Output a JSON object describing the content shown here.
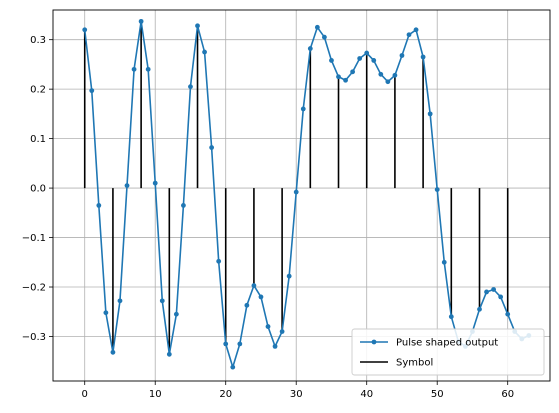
{
  "chart_data": {
    "type": "line",
    "title": "",
    "xlabel": "",
    "ylabel": "",
    "xlim": [
      -4.5,
      66.0
    ],
    "ylim": [
      -0.39,
      0.36
    ],
    "grid": true,
    "legend_placement": "lower-right",
    "x_ticks": [
      0,
      10,
      20,
      30,
      40,
      50,
      60
    ],
    "y_ticks": [
      -0.3,
      -0.2,
      -0.1,
      0.0,
      0.1,
      0.2,
      0.3
    ],
    "x_tick_labels": [
      "0",
      "10",
      "20",
      "30",
      "40",
      "50",
      "60"
    ],
    "y_tick_labels": [
      "−0.3",
      "−0.2",
      "−0.1",
      "0.0",
      "0.1",
      "0.2",
      "0.3"
    ],
    "series": [
      {
        "name": "Pulse shaped output",
        "style": "line-with-dots",
        "color": "#1f77b4",
        "x": [
          0,
          1,
          2,
          3,
          4,
          5,
          6,
          7,
          8,
          9,
          10,
          11,
          12,
          13,
          14,
          15,
          16,
          17,
          18,
          19,
          20,
          21,
          22,
          23,
          24,
          25,
          26,
          27,
          28,
          29,
          30,
          31,
          32,
          33,
          34,
          35,
          36,
          37,
          38,
          39,
          40,
          41,
          42,
          43,
          44,
          45,
          46,
          47,
          48,
          49,
          50,
          51,
          52,
          53,
          54,
          55,
          56,
          57,
          58,
          59,
          60,
          61,
          62,
          63
        ],
        "y": [
          0.32,
          0.197,
          -0.035,
          -0.252,
          -0.332,
          -0.228,
          0.005,
          0.24,
          0.337,
          0.24,
          0.01,
          -0.228,
          -0.336,
          -0.255,
          -0.035,
          0.205,
          0.328,
          0.275,
          0.082,
          -0.148,
          -0.315,
          -0.362,
          -0.315,
          -0.237,
          -0.197,
          -0.22,
          -0.28,
          -0.32,
          -0.29,
          -0.178,
          -0.008,
          0.16,
          0.282,
          0.325,
          0.305,
          0.258,
          0.225,
          0.218,
          0.235,
          0.262,
          0.273,
          0.258,
          0.23,
          0.215,
          0.228,
          0.268,
          0.31,
          0.32,
          0.265,
          0.15,
          -0.003,
          -0.15,
          -0.26,
          -0.31,
          -0.32,
          -0.29,
          -0.245,
          -0.21,
          -0.205,
          -0.22,
          -0.255,
          -0.29,
          -0.305,
          -0.298
        ]
      },
      {
        "name": "Symbol",
        "style": "stem",
        "color": "#000000",
        "x": [
          0,
          4,
          8,
          12,
          16,
          20,
          24,
          28,
          32,
          36,
          40,
          44,
          48,
          52,
          56,
          60
        ],
        "y": [
          0.32,
          -0.332,
          0.337,
          -0.336,
          0.328,
          -0.315,
          -0.197,
          -0.29,
          0.282,
          0.225,
          0.273,
          0.228,
          0.265,
          -0.26,
          -0.245,
          -0.255
        ]
      }
    ]
  }
}
